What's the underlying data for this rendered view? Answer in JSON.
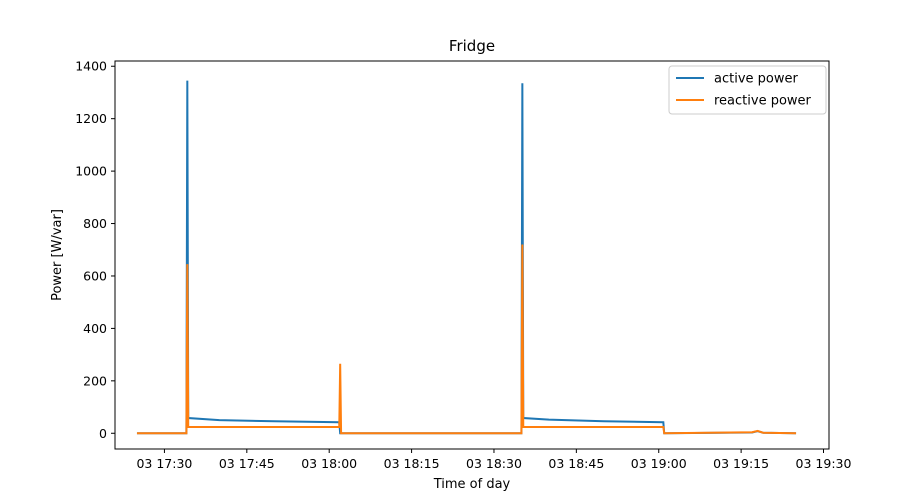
{
  "chart_data": {
    "type": "line",
    "title": "Fridge",
    "xlabel": "Time of day",
    "ylabel": "Power [W/var]",
    "ylim": [
      -60,
      1420
    ],
    "xlim": [
      "2000-01-03T17:21:00",
      "2000-01-03T19:31:00"
    ],
    "yticks": [
      0,
      200,
      400,
      600,
      800,
      1000,
      1200,
      1400
    ],
    "xticks": [
      {
        "t": "2000-01-03T17:30:00",
        "label": "03 17:30"
      },
      {
        "t": "2000-01-03T17:45:00",
        "label": "03 17:45"
      },
      {
        "t": "2000-01-03T18:00:00",
        "label": "03 18:00"
      },
      {
        "t": "2000-01-03T18:15:00",
        "label": "03 18:15"
      },
      {
        "t": "2000-01-03T18:30:00",
        "label": "03 18:30"
      },
      {
        "t": "2000-01-03T18:45:00",
        "label": "03 18:45"
      },
      {
        "t": "2000-01-03T19:00:00",
        "label": "03 19:00"
      },
      {
        "t": "2000-01-03T19:15:00",
        "label": "03 19:15"
      },
      {
        "t": "2000-01-03T19:30:00",
        "label": "03 19:30"
      }
    ],
    "legend_position": "top-right",
    "grid": false,
    "series": [
      {
        "name": "active power",
        "color": "#1f77b4",
        "points": [
          [
            "2000-01-03T17:25:00",
            0
          ],
          [
            "2000-01-03T17:34:00",
            0
          ],
          [
            "2000-01-03T17:34:10",
            1345
          ],
          [
            "2000-01-03T17:34:20",
            58
          ],
          [
            "2000-01-03T17:40:00",
            50
          ],
          [
            "2000-01-03T17:50:00",
            46
          ],
          [
            "2000-01-03T18:01:50",
            42
          ],
          [
            "2000-01-03T18:02:00",
            0
          ],
          [
            "2000-01-03T18:35:00",
            0
          ],
          [
            "2000-01-03T18:35:10",
            1335
          ],
          [
            "2000-01-03T18:35:20",
            58
          ],
          [
            "2000-01-03T18:40:00",
            52
          ],
          [
            "2000-01-03T18:50:00",
            46
          ],
          [
            "2000-01-03T19:00:50",
            42
          ],
          [
            "2000-01-03T19:01:00",
            0
          ],
          [
            "2000-01-03T19:17:00",
            3
          ],
          [
            "2000-01-03T19:18:00",
            8
          ],
          [
            "2000-01-03T19:19:00",
            2
          ],
          [
            "2000-01-03T19:25:00",
            0
          ]
        ]
      },
      {
        "name": "reactive power",
        "color": "#ff7f0e",
        "points": [
          [
            "2000-01-03T17:25:00",
            0
          ],
          [
            "2000-01-03T17:34:00",
            0
          ],
          [
            "2000-01-03T17:34:10",
            645
          ],
          [
            "2000-01-03T17:34:20",
            24
          ],
          [
            "2000-01-03T18:01:50",
            24
          ],
          [
            "2000-01-03T18:02:00",
            265
          ],
          [
            "2000-01-03T18:02:10",
            0
          ],
          [
            "2000-01-03T18:35:00",
            0
          ],
          [
            "2000-01-03T18:35:10",
            720
          ],
          [
            "2000-01-03T18:35:20",
            24
          ],
          [
            "2000-01-03T19:00:50",
            24
          ],
          [
            "2000-01-03T19:01:00",
            0
          ],
          [
            "2000-01-03T19:17:00",
            4
          ],
          [
            "2000-01-03T19:18:00",
            9
          ],
          [
            "2000-01-03T19:19:00",
            2
          ],
          [
            "2000-01-03T19:25:00",
            0
          ]
        ]
      }
    ]
  }
}
